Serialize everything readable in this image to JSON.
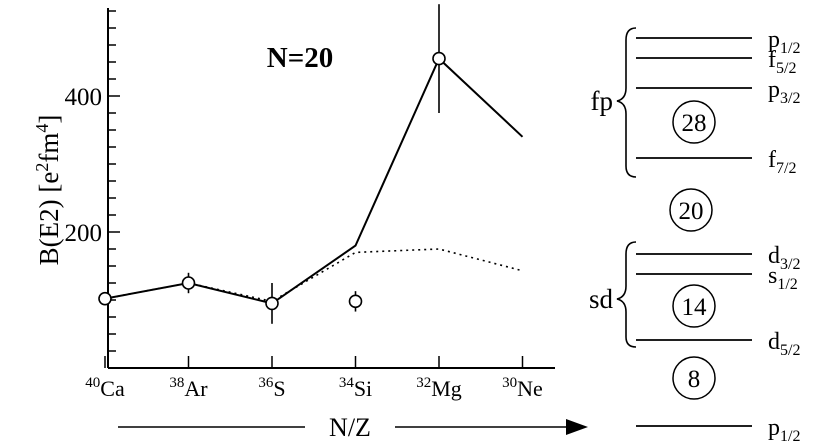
{
  "chart_data": {
    "type": "line",
    "title": "N=20",
    "ylabel": "B(E2) [e2fm4]",
    "ylabel_parts": {
      "base": "B(E2) [e",
      "sup1": "2",
      "mid": "fm",
      "sup2": "4",
      "end": "]"
    },
    "xlabel": "N/Z",
    "yticks": [
      "200",
      "400"
    ],
    "ylim": [
      0,
      540
    ],
    "categories": [
      {
        "mass": "40",
        "element": "Ca"
      },
      {
        "mass": "38",
        "element": "Ar"
      },
      {
        "mass": "36",
        "element": "S"
      },
      {
        "mass": "34",
        "element": "Si"
      },
      {
        "mass": "32",
        "element": "Mg"
      },
      {
        "mass": "30",
        "element": "Ne"
      }
    ],
    "series": [
      {
        "style": "solid",
        "values": [
          102,
          125,
          95,
          180,
          455,
          340
        ]
      },
      {
        "style": "dotted",
        "values": [
          102,
          125,
          98,
          170,
          175,
          143
        ]
      }
    ],
    "experiment": [
      {
        "index": 0,
        "value": 102,
        "err": 8
      },
      {
        "index": 1,
        "value": 125,
        "err": 15
      },
      {
        "index": 2,
        "value": 95,
        "err": 30
      },
      {
        "index": 3,
        "value": 98,
        "err": 15
      },
      {
        "index": 4,
        "value": 455,
        "err": 80
      }
    ]
  },
  "shell_levels": {
    "levels": [
      {
        "label": "p",
        "sub": "1/2"
      },
      {
        "label": "f",
        "sub": "5/2"
      },
      {
        "label": "p",
        "sub": "3/2"
      },
      {
        "label": "f",
        "sub": "7/2"
      },
      {
        "label": "d",
        "sub": "3/2"
      },
      {
        "label": "s",
        "sub": "1/2"
      },
      {
        "label": "d",
        "sub": "5/2"
      },
      {
        "label": "p",
        "sub": "1/2"
      }
    ],
    "magic_numbers": [
      "28",
      "20",
      "14",
      "8"
    ],
    "groups": [
      "fp",
      "sd"
    ]
  }
}
